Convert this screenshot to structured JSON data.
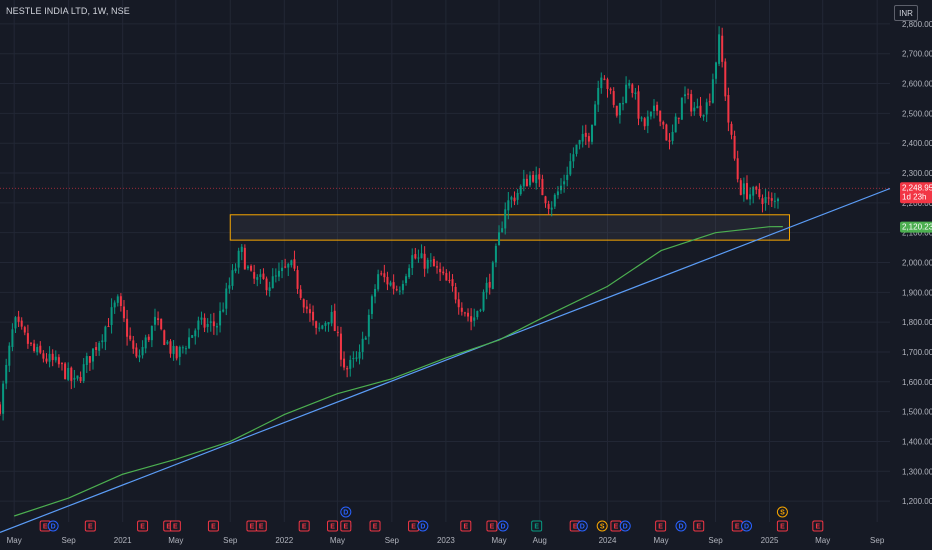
{
  "header": {
    "symbol_title": "NESTLE INDIA LTD, 1W, NSE",
    "currency": "INR"
  },
  "chart_data": {
    "type": "candlestick",
    "timeframe": "1W",
    "ylim": [
      1150,
      2850
    ],
    "y_ticks": [
      1200,
      1300,
      1400,
      1500,
      1600,
      1700,
      1800,
      1900,
      2000,
      2100,
      2200,
      2300,
      2400,
      2500,
      2600,
      2700,
      2800
    ],
    "y_tick_labels": [
      "1,200.00",
      "1,300.00",
      "1,400.00",
      "1,500.00",
      "1,600.00",
      "1,700.00",
      "1,800.00",
      "1,900.00",
      "2,000.00",
      "2,100.00",
      "2,200.00",
      "2,300.00",
      "2,400.00",
      "2,500.00",
      "2,600.00",
      "2,700.00",
      "2,800.00"
    ],
    "x_range": [
      "2020-03-30",
      "2025-09-30"
    ],
    "x_ticks": [
      {
        "date": "2020-05-01",
        "label": "May"
      },
      {
        "date": "2020-09-01",
        "label": "Sep"
      },
      {
        "date": "2021-01-01",
        "label": "2021"
      },
      {
        "date": "2021-05-01",
        "label": "May"
      },
      {
        "date": "2021-09-01",
        "label": "Sep"
      },
      {
        "date": "2022-01-01",
        "label": "2022"
      },
      {
        "date": "2022-05-01",
        "label": "May"
      },
      {
        "date": "2022-09-01",
        "label": "Sep"
      },
      {
        "date": "2023-01-01",
        "label": "2023"
      },
      {
        "date": "2023-05-01",
        "label": "May"
      },
      {
        "date": "2023-08-01",
        "label": "Aug"
      },
      {
        "date": "2024-01-01",
        "label": "2024"
      },
      {
        "date": "2024-05-01",
        "label": "May"
      },
      {
        "date": "2024-09-01",
        "label": "Sep"
      },
      {
        "date": "2025-01-01",
        "label": "2025"
      },
      {
        "date": "2025-05-01",
        "label": "May"
      },
      {
        "date": "2025-09-01",
        "label": "Sep"
      }
    ],
    "price_anchors": [
      {
        "date": "2020-03-30",
        "close": 1520
      },
      {
        "date": "2020-05-01",
        "close": 1800
      },
      {
        "date": "2020-06-15",
        "close": 1700
      },
      {
        "date": "2020-08-15",
        "close": 1650
      },
      {
        "date": "2020-09-15",
        "close": 1590
      },
      {
        "date": "2020-11-15",
        "close": 1760
      },
      {
        "date": "2020-12-20",
        "close": 1870
      },
      {
        "date": "2021-02-01",
        "close": 1670
      },
      {
        "date": "2021-03-15",
        "close": 1800
      },
      {
        "date": "2021-05-01",
        "close": 1680
      },
      {
        "date": "2021-06-20",
        "close": 1790
      },
      {
        "date": "2021-08-01",
        "close": 1790
      },
      {
        "date": "2021-09-25",
        "close": 2040
      },
      {
        "date": "2021-10-20",
        "close": 1940
      },
      {
        "date": "2021-12-01",
        "close": 1930
      },
      {
        "date": "2022-01-15",
        "close": 1990
      },
      {
        "date": "2022-02-15",
        "close": 1870
      },
      {
        "date": "2022-03-15",
        "close": 1760
      },
      {
        "date": "2022-04-15",
        "close": 1830
      },
      {
        "date": "2022-05-20",
        "close": 1640
      },
      {
        "date": "2022-06-20",
        "close": 1680
      },
      {
        "date": "2022-08-01",
        "close": 1960
      },
      {
        "date": "2022-09-15",
        "close": 1910
      },
      {
        "date": "2022-10-15",
        "close": 2020
      },
      {
        "date": "2022-12-01",
        "close": 1990
      },
      {
        "date": "2023-01-20",
        "close": 1900
      },
      {
        "date": "2023-03-01",
        "close": 1800
      },
      {
        "date": "2023-04-15",
        "close": 1960
      },
      {
        "date": "2023-05-15",
        "close": 2190
      },
      {
        "date": "2023-06-15",
        "close": 2240
      },
      {
        "date": "2023-07-15",
        "close": 2300
      },
      {
        "date": "2023-08-25",
        "close": 2190
      },
      {
        "date": "2023-09-20",
        "close": 2260
      },
      {
        "date": "2023-10-20",
        "close": 2380
      },
      {
        "date": "2023-11-20",
        "close": 2430
      },
      {
        "date": "2023-12-20",
        "close": 2660
      },
      {
        "date": "2024-01-20",
        "close": 2490
      },
      {
        "date": "2024-02-20",
        "close": 2620
      },
      {
        "date": "2024-03-20",
        "close": 2450
      },
      {
        "date": "2024-04-25",
        "close": 2520
      },
      {
        "date": "2024-05-20",
        "close": 2390
      },
      {
        "date": "2024-06-20",
        "close": 2560
      },
      {
        "date": "2024-07-20",
        "close": 2510
      },
      {
        "date": "2024-08-15",
        "close": 2530
      },
      {
        "date": "2024-09-10",
        "close": 2750
      },
      {
        "date": "2024-10-01",
        "close": 2460
      },
      {
        "date": "2024-10-25",
        "close": 2250
      },
      {
        "date": "2024-11-20",
        "close": 2230
      },
      {
        "date": "2024-12-15",
        "close": 2220
      },
      {
        "date": "2025-01-10",
        "close": 2190
      },
      {
        "date": "2025-01-25",
        "close": 2250
      }
    ],
    "last_price": {
      "value": 2248.95,
      "label": "2,248.95",
      "countdown": "1d 23h",
      "color": "#f23645"
    },
    "moving_average": {
      "color": "#4caf50",
      "label": "2,120.23",
      "value": 2120.23,
      "points": [
        {
          "date": "2020-05-01",
          "value": 1150
        },
        {
          "date": "2020-09-01",
          "value": 1210
        },
        {
          "date": "2021-01-01",
          "value": 1290
        },
        {
          "date": "2021-05-01",
          "value": 1340
        },
        {
          "date": "2021-09-01",
          "value": 1400
        },
        {
          "date": "2022-01-01",
          "value": 1490
        },
        {
          "date": "2022-05-01",
          "value": 1560
        },
        {
          "date": "2022-09-01",
          "value": 1610
        },
        {
          "date": "2023-01-01",
          "value": 1680
        },
        {
          "date": "2023-05-01",
          "value": 1740
        },
        {
          "date": "2023-08-01",
          "value": 1810
        },
        {
          "date": "2024-01-01",
          "value": 1920
        },
        {
          "date": "2024-05-01",
          "value": 2040
        },
        {
          "date": "2024-09-01",
          "value": 2100
        },
        {
          "date": "2025-01-01",
          "value": 2120
        },
        {
          "date": "2025-01-31",
          "value": 2120.23
        }
      ]
    },
    "trendline": {
      "color": "#5b9cf6",
      "start": {
        "date": "2020-03-30",
        "value": 1095
      },
      "end": {
        "date": "2025-09-30",
        "value": 2248
      }
    },
    "support_zone": {
      "from_date": "2021-09-01",
      "to_date": "2025-02-15",
      "low": 2075,
      "high": 2160,
      "border_color": "#f7a600"
    },
    "events": [
      {
        "date": "2020-07-10",
        "type": "E"
      },
      {
        "date": "2020-07-28",
        "type": "D"
      },
      {
        "date": "2020-10-20",
        "type": "E"
      },
      {
        "date": "2021-02-15",
        "type": "E"
      },
      {
        "date": "2021-04-15",
        "type": "E"
      },
      {
        "date": "2021-04-30",
        "type": "E"
      },
      {
        "date": "2021-07-25",
        "type": "E"
      },
      {
        "date": "2021-10-20",
        "type": "E"
      },
      {
        "date": "2021-11-10",
        "type": "E"
      },
      {
        "date": "2022-02-15",
        "type": "E"
      },
      {
        "date": "2022-04-20",
        "type": "E"
      },
      {
        "date": "2022-05-20",
        "type": "D"
      },
      {
        "date": "2022-05-20",
        "type": "E"
      },
      {
        "date": "2022-07-25",
        "type": "E"
      },
      {
        "date": "2022-10-20",
        "type": "E"
      },
      {
        "date": "2022-11-10",
        "type": "D"
      },
      {
        "date": "2023-02-15",
        "type": "E"
      },
      {
        "date": "2023-04-15",
        "type": "E"
      },
      {
        "date": "2023-05-10",
        "type": "D"
      },
      {
        "date": "2023-07-25",
        "type": "E"
      },
      {
        "date": "2023-10-20",
        "type": "E"
      },
      {
        "date": "2023-11-05",
        "type": "D"
      },
      {
        "date": "2023-12-20",
        "type": "S"
      },
      {
        "date": "2024-01-20",
        "type": "E"
      },
      {
        "date": "2024-02-10",
        "type": "D"
      },
      {
        "date": "2024-04-30",
        "type": "E"
      },
      {
        "date": "2024-06-15",
        "type": "D"
      },
      {
        "date": "2024-07-25",
        "type": "E"
      },
      {
        "date": "2024-10-20",
        "type": "E"
      },
      {
        "date": "2024-11-10",
        "type": "D"
      },
      {
        "date": "2025-01-30",
        "type": "E"
      },
      {
        "date": "2025-04-20",
        "type": "E"
      }
    ],
    "upper_events": [
      {
        "date": "2022-05-20",
        "type": "D"
      },
      {
        "date": "2025-01-30",
        "type": "S"
      }
    ]
  }
}
